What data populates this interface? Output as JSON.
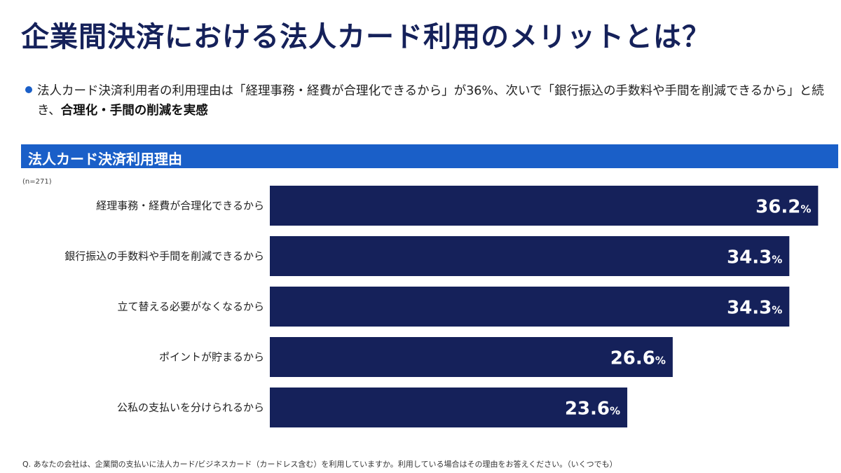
{
  "title": "企業間決済における法人カード利用のメリットとは？",
  "bullet": {
    "text_normal": "法人カード決済利用者の利用理由は「経理事務・経費が合理化できるから」が36%、次いで「銀行振込の手数料や手間を削減できるから」と続き、",
    "text_bold": "合理化・手間の削減を実感"
  },
  "section_title": "法人カード決済利用理由",
  "sample_note": "(n=271)",
  "footnote": "Q. あなたの会社は、企業間の支払いに法人カード/ビジネスカード（カードレス含む）を利用していますか。利用している場合はその理由をお答えください。（いくつでも）",
  "colors": {
    "title": "#15215a",
    "accent_blue": "#1a5fc8",
    "bar_fill": "#15215a",
    "value_text": "#ffffff"
  },
  "chart_data": {
    "type": "bar",
    "orientation": "horizontal",
    "categories": [
      "経理事務・経費が合理化できるから",
      "銀行振込の手数料や手間を削減できるから",
      "立て替える必要がなくなるから",
      "ポイントが貯まるから",
      "公私の支払いを分けられるから"
    ],
    "values": [
      36.2,
      34.3,
      34.3,
      26.6,
      23.6
    ],
    "value_labels": [
      "36.2",
      "34.3",
      "34.3",
      "26.6",
      "23.6"
    ],
    "unit": "%",
    "xlim": [
      0,
      36.6
    ],
    "grid": false,
    "legend": "none"
  }
}
